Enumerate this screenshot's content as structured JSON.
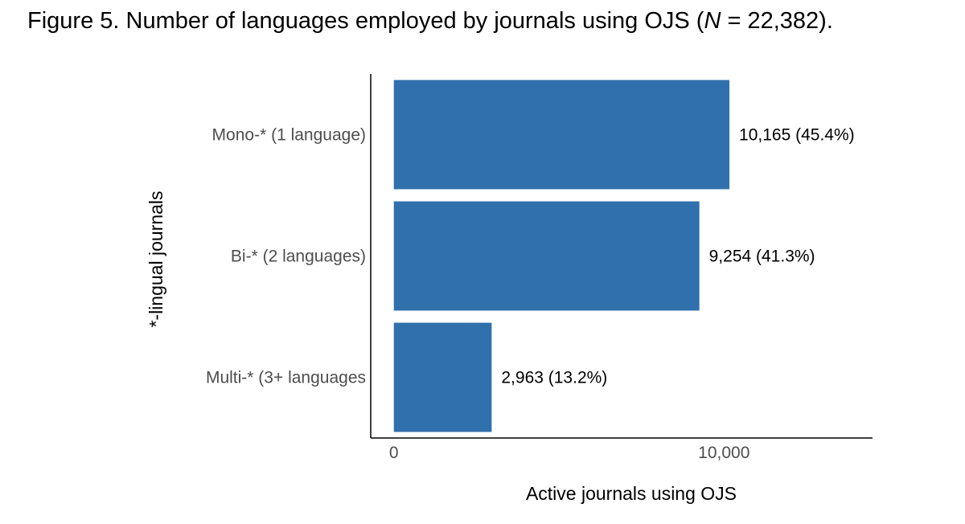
{
  "figure": {
    "title_prefix": "Figure 5. Number of languages employed by journals using OJS (",
    "title_n": "N",
    "title_suffix": " = 22,382)."
  },
  "chart_data": {
    "type": "bar",
    "orientation": "horizontal",
    "categories": [
      "Mono-* (1 language)",
      "Bi-* (2 languages)",
      "Multi-* (3+ languages"
    ],
    "values": [
      10165,
      9254,
      2963
    ],
    "data_labels": [
      "10,165 (45.4%)",
      "9,254 (41.3%)",
      "2,963 (13.2%)"
    ],
    "xlabel": "Active journals using OJS",
    "ylabel": "*-lingual journals",
    "xlim": [
      -700,
      14500
    ],
    "xticks": [
      0,
      10000
    ],
    "xtick_labels": [
      "0",
      "10,000"
    ],
    "grid": false,
    "legend": "none",
    "bar_color": "#3070ad"
  }
}
